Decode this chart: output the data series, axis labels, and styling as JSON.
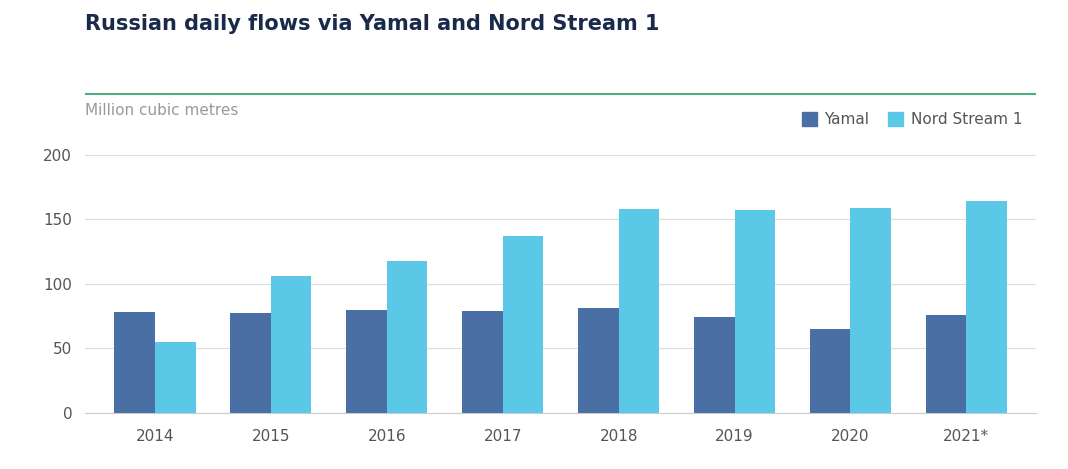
{
  "title": "Russian daily flows via Yamal and Nord Stream 1",
  "subtitle": "Million cubic metres",
  "categories": [
    "2014",
    "2015",
    "2016",
    "2017",
    "2018",
    "2019",
    "2020",
    "2021*"
  ],
  "yamal": [
    78,
    77,
    80,
    79,
    81,
    74,
    65,
    76
  ],
  "nord_stream": [
    55,
    106,
    118,
    137,
    158,
    157,
    159,
    164
  ],
  "yamal_color": "#4a6fa5",
  "nord_stream_color": "#5bc8e8",
  "bg_color": "#ffffff",
  "title_color": "#1a2a4a",
  "subtitle_color": "#999999",
  "grid_color": "#dddddd",
  "axis_color": "#cccccc",
  "tick_color": "#555555",
  "title_line_color": "#4caf7d",
  "ylim": [
    0,
    200
  ],
  "yticks": [
    0,
    50,
    100,
    150,
    200
  ],
  "bar_width": 0.35,
  "title_fontsize": 15,
  "subtitle_fontsize": 11,
  "tick_fontsize": 11,
  "legend_fontsize": 11
}
